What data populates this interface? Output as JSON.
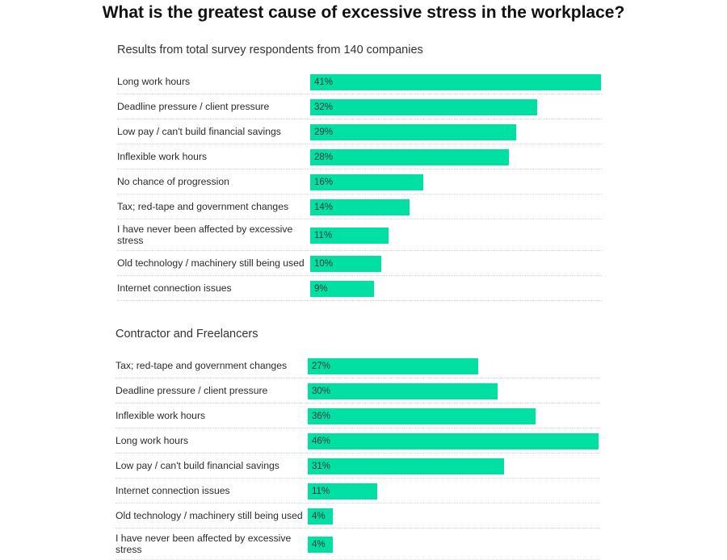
{
  "title": "What is the greatest cause of excessive stress in the workplace?",
  "colors": {
    "bar": "#00e0a3",
    "grid": "#d6d6d6"
  },
  "chart_data": [
    {
      "type": "bar",
      "orientation": "horizontal",
      "title": "Results from total survey respondents from 140 companies",
      "categories": [
        "Long work hours",
        "Deadline pressure / client pressure",
        "Low pay / can't build financial savings",
        "Inflexible work hours",
        "No chance of progression",
        "Tax; red-tape and government changes",
        "I have never been affected by excessive stress",
        "Old technology / machinery still being used",
        "Internet connection issues"
      ],
      "values": [
        41,
        32,
        29,
        28,
        16,
        14,
        11,
        10,
        9
      ],
      "labels": [
        "41%",
        "32%",
        "29%",
        "28%",
        "16%",
        "14%",
        "11%",
        "10%",
        "9%"
      ],
      "xlim": [
        0,
        41
      ]
    },
    {
      "type": "bar",
      "orientation": "horizontal",
      "title": "Contractor and Freelancers",
      "categories": [
        "Tax; red-tape and government changes",
        "Deadline pressure / client pressure",
        "Inflexible work hours",
        "Long work hours",
        "Low pay / can't build financial savings",
        "Internet connection issues",
        "Old technology / machinery still being used",
        "I have never been affected by excessive stress"
      ],
      "values": [
        27,
        30,
        36,
        46,
        31,
        11,
        4,
        4
      ],
      "labels": [
        "27%",
        "30%",
        "36%",
        "46%",
        "31%",
        "11%",
        "4%",
        "4%"
      ],
      "xlim": [
        0,
        46
      ]
    }
  ]
}
